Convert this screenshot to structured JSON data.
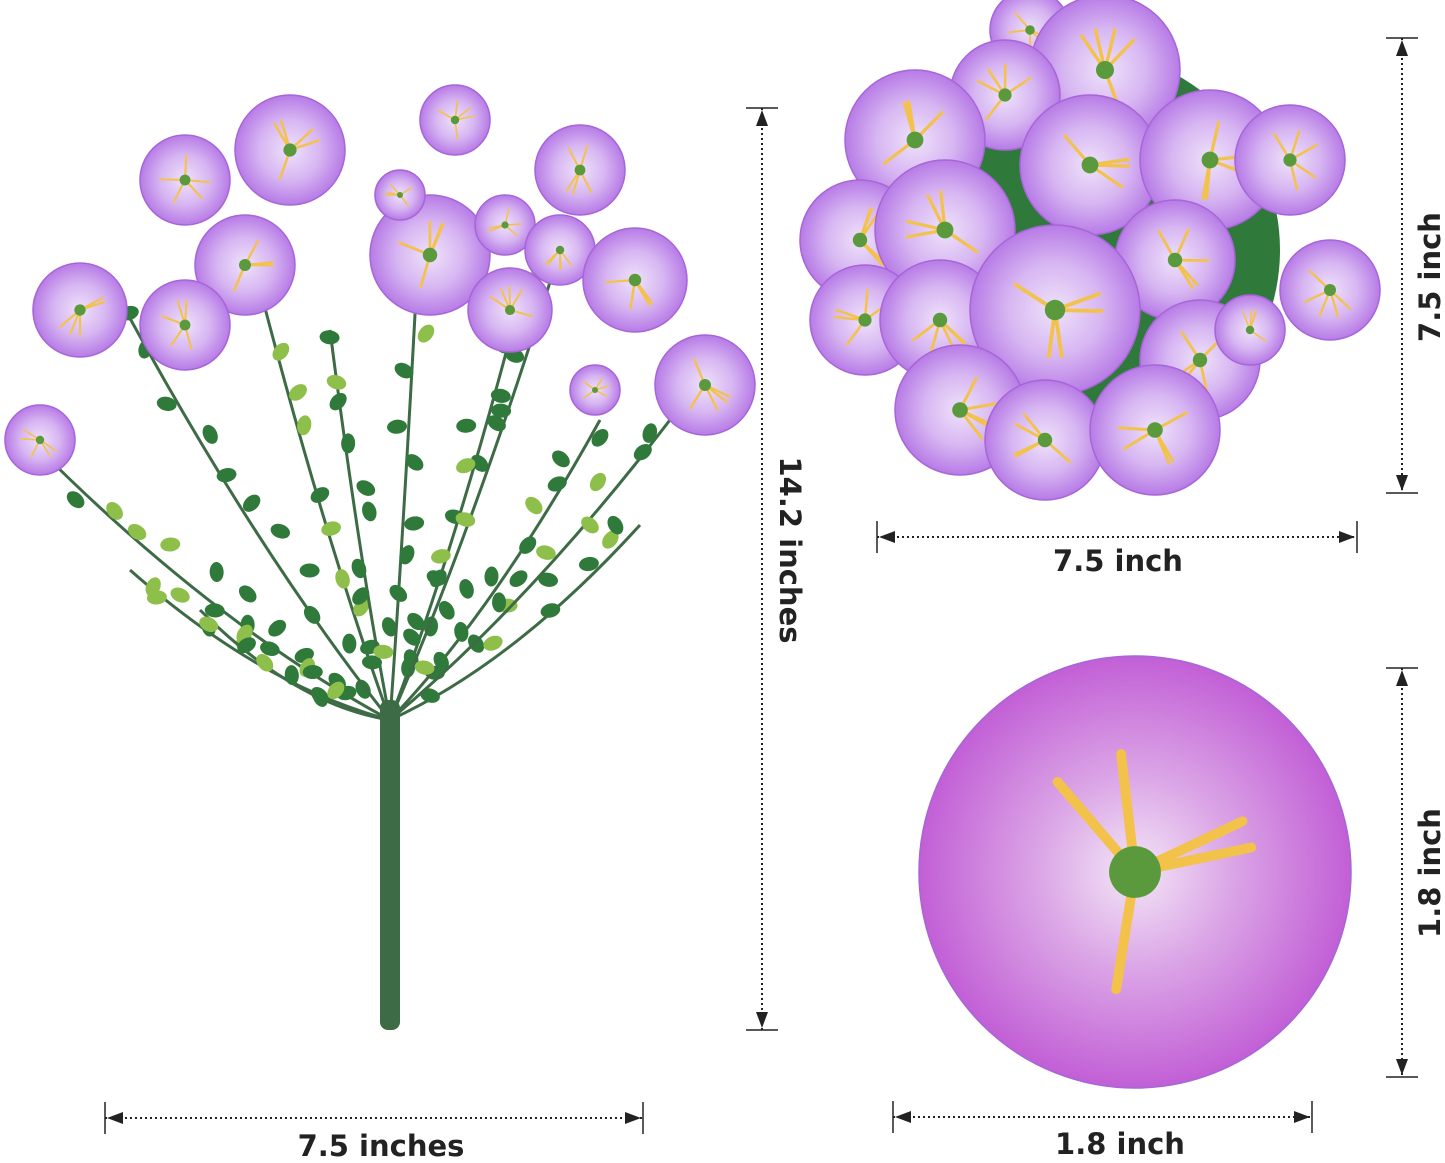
{
  "product": "artificial purple morning glory flower bush",
  "dimensions": {
    "bouquet_height": "14.2 inches",
    "bouquet_width": "7.5 inches",
    "top_view_height": "7.5 inch",
    "top_view_width": "7.5 inch",
    "flower_height": "1.8 inch",
    "flower_width": "1.8 inch"
  },
  "colors": {
    "petal": "#b77be6",
    "petal_light": "#efe2fa",
    "petal_single": "#c25fd6",
    "stamen": "#f2c24a",
    "leaf": "#2f7a3a",
    "leaf_light": "#8dbf4a",
    "stem": "#3d6b45",
    "dimension_line": "#222222"
  }
}
